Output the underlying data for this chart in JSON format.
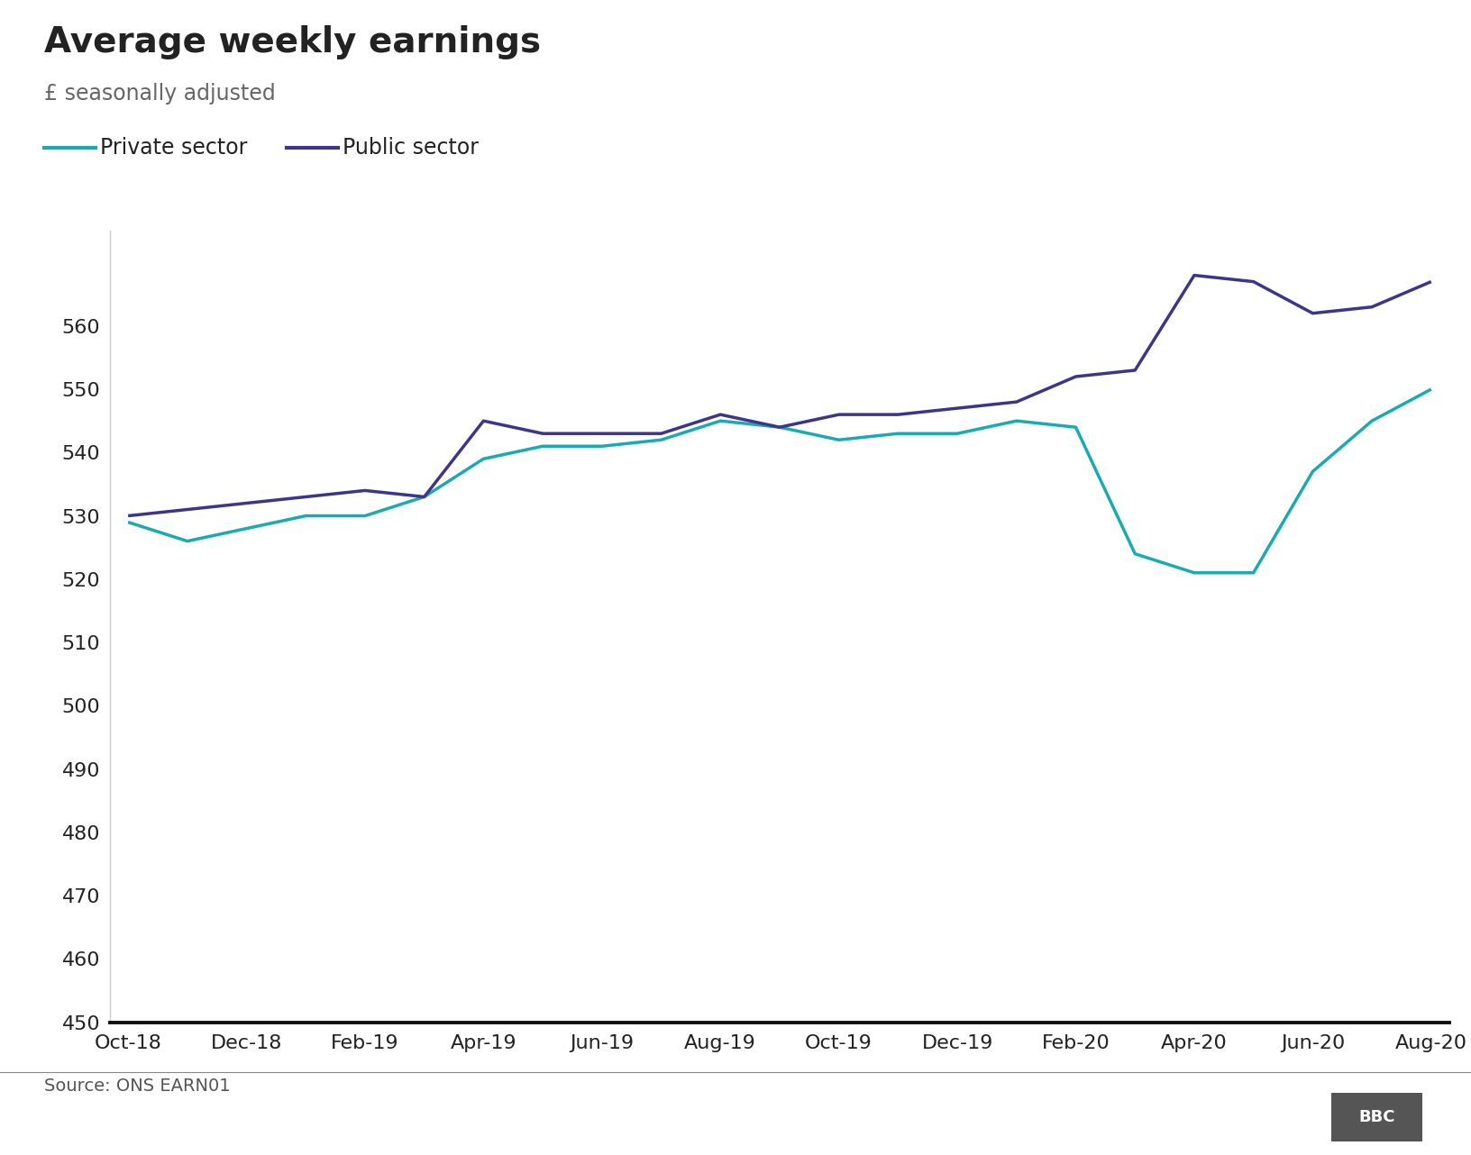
{
  "title": "Average weekly earnings",
  "subtitle": "£ seasonally adjusted",
  "source": "Source: ONS EARN01",
  "x_labels": [
    "Oct-18",
    "Dec-18",
    "Feb-19",
    "Apr-19",
    "Jun-19",
    "Aug-19",
    "Oct-19",
    "Dec-19",
    "Feb-20",
    "Apr-20",
    "Jun-20",
    "Aug-20"
  ],
  "private_vals": [
    529,
    526,
    528,
    530,
    530,
    533,
    539,
    541,
    541,
    542,
    545,
    544,
    542,
    543,
    543,
    545,
    544,
    524,
    521,
    521,
    537,
    545,
    550
  ],
  "public_vals": [
    530,
    531,
    532,
    533,
    534,
    533,
    545,
    543,
    543,
    543,
    546,
    544,
    546,
    546,
    547,
    548,
    552,
    553,
    568,
    567,
    562,
    563,
    567
  ],
  "private_color": "#1aabb0",
  "public_color": "#3D3589",
  "ylim": [
    450,
    575
  ],
  "yticks": [
    450,
    460,
    470,
    480,
    490,
    500,
    510,
    520,
    530,
    540,
    550,
    560
  ],
  "xtick_positions": [
    0,
    2,
    4,
    6,
    8,
    10,
    12,
    14,
    16,
    18,
    20,
    22
  ],
  "title_fontsize": 28,
  "subtitle_fontsize": 17,
  "legend_fontsize": 17,
  "tick_fontsize": 16,
  "source_fontsize": 14,
  "line_width": 2.5,
  "background_color": "#ffffff",
  "text_color": "#222222",
  "subtitle_color": "#666666",
  "spine_color": "#cccccc",
  "bottom_spine_color": "#111111"
}
